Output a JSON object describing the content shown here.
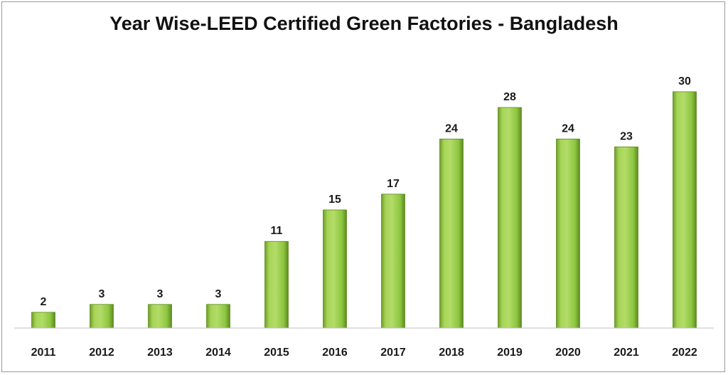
{
  "chart_data": {
    "type": "bar",
    "title": "Year Wise-LEED Certified Green Factories - Bangladesh",
    "xlabel": "",
    "ylabel": "",
    "categories": [
      "2011",
      "2012",
      "2013",
      "2014",
      "2015",
      "2016",
      "2017",
      "2018",
      "2019",
      "2020",
      "2021",
      "2022"
    ],
    "values": [
      2,
      3,
      3,
      3,
      11,
      15,
      17,
      24,
      28,
      24,
      23,
      30
    ],
    "ylim": [
      0,
      32
    ],
    "grid": false,
    "legend": "none",
    "colors": {
      "bar_light": "#a9d65a",
      "bar_mid": "#8cc63f",
      "bar_dark": "#5e8a20",
      "baseline": "#bfbfbf"
    }
  }
}
